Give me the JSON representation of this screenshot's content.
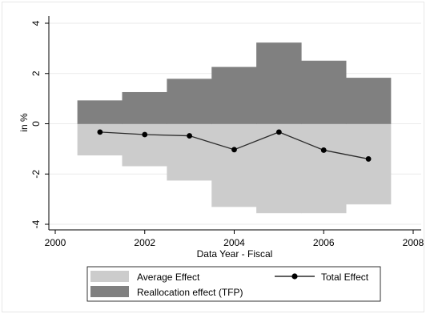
{
  "chart_data": {
    "type": "bar",
    "xlabel": "Data Year - Fiscal",
    "ylabel": "in %",
    "xlim": [
      2000,
      2008
    ],
    "ylim": [
      -4,
      4
    ],
    "xticks": [
      {
        "value": 2000,
        "label": "2000"
      },
      {
        "value": 2002,
        "label": "2002"
      },
      {
        "value": 2004,
        "label": "2004"
      },
      {
        "value": 2006,
        "label": "2006"
      },
      {
        "value": 2008,
        "label": "2008"
      }
    ],
    "yticks": [
      {
        "value": -4,
        "label": "-4"
      },
      {
        "value": -2,
        "label": "-2"
      },
      {
        "value": 0,
        "label": "0"
      },
      {
        "value": 2,
        "label": "2"
      },
      {
        "value": 4,
        "label": "4"
      }
    ],
    "grid": true,
    "legend_position": "bottom",
    "series": [
      {
        "name": "Average Effect",
        "kind": "bar",
        "color": "#cccccc",
        "x": [
          2001,
          2002,
          2003,
          2004,
          2005,
          2006,
          2007
        ],
        "values": [
          -1.25,
          -1.68,
          -2.25,
          -3.3,
          -3.55,
          -3.55,
          -3.2
        ]
      },
      {
        "name": "Reallocation effect (TFP)",
        "kind": "bar",
        "color": "#808080",
        "x": [
          2001,
          2002,
          2003,
          2004,
          2005,
          2006,
          2007
        ],
        "values": [
          0.92,
          1.25,
          1.78,
          2.25,
          3.22,
          2.5,
          1.82
        ]
      },
      {
        "name": "Total Effect",
        "kind": "line",
        "color": "#000000",
        "x": [
          2001,
          2002,
          2003,
          2004,
          2005,
          2006,
          2007
        ],
        "values": [
          -0.33,
          -0.43,
          -0.48,
          -1.03,
          -0.33,
          -1.05,
          -1.4
        ]
      }
    ]
  }
}
